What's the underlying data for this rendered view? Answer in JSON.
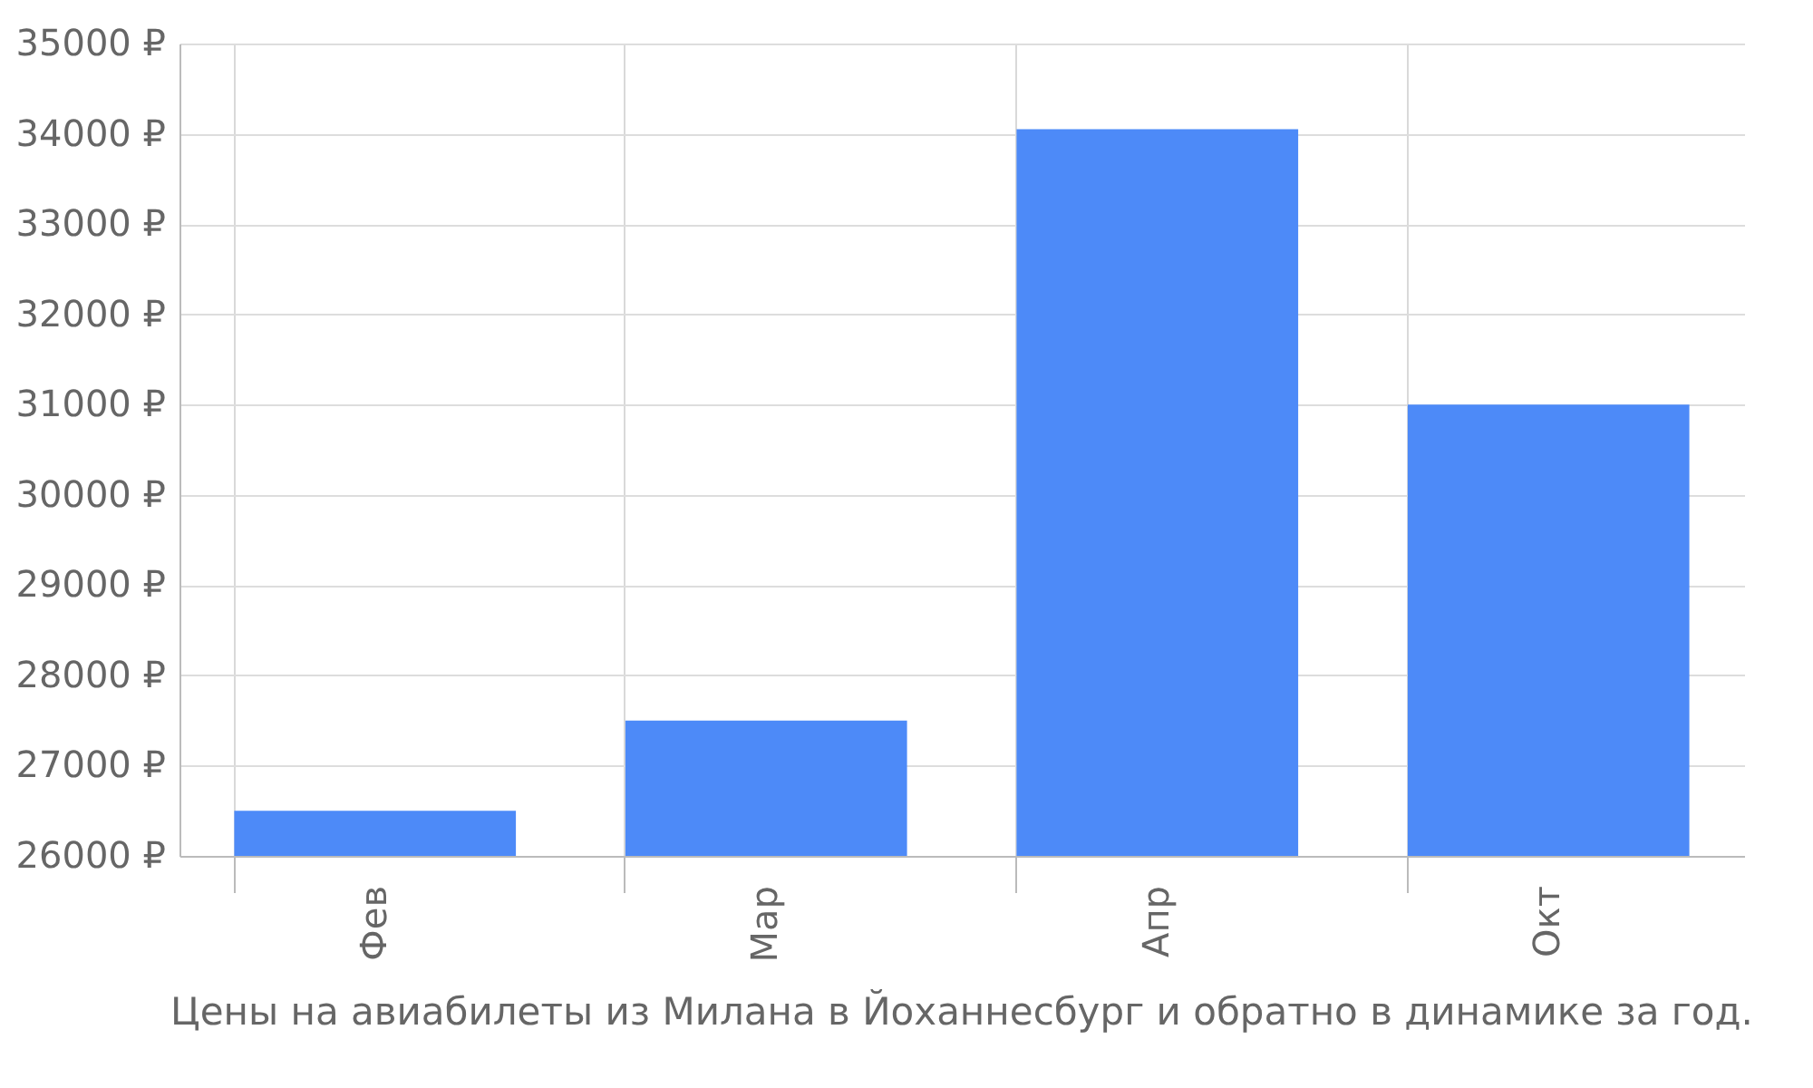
{
  "chart_data": {
    "type": "bar",
    "title": "Цены на авиабилеты из Милана в Йоханнесбург и обратно в динамике за год.",
    "categories": [
      "Фев",
      "Мар",
      "Апр",
      "Окт"
    ],
    "values": [
      26500,
      27500,
      34050,
      31000
    ],
    "color": "#4d8af8",
    "ylim": [
      26000,
      35000
    ],
    "yticks": [
      {
        "value": 26000,
        "label": "26000 ₽"
      },
      {
        "value": 27000,
        "label": "27000 ₽"
      },
      {
        "value": 28000,
        "label": "28000 ₽"
      },
      {
        "value": 29000,
        "label": "29000 ₽"
      },
      {
        "value": 30000,
        "label": "30000 ₽"
      },
      {
        "value": 31000,
        "label": "31000 ₽"
      },
      {
        "value": 32000,
        "label": "32000 ₽"
      },
      {
        "value": 33000,
        "label": "33000 ₽"
      },
      {
        "value": 34000,
        "label": "34000 ₽"
      },
      {
        "value": 35000,
        "label": "35000 ₽"
      }
    ],
    "grid": true
  }
}
